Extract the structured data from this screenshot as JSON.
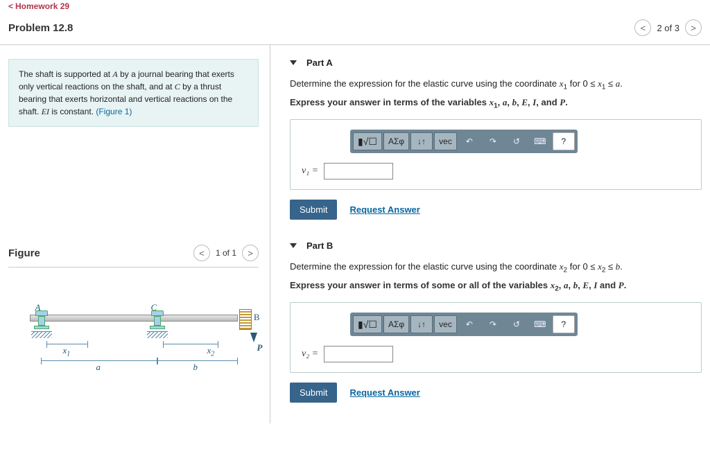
{
  "breadcrumb": "Homework 29",
  "problem_title": "Problem 12.8",
  "page_indicator": "2 of 3",
  "info_html": "The shaft is supported at <span class='mi'>A</span> by a journal bearing that exerts only vertical reactions on the shaft, and at <span class='mi'>C</span> by a thrust bearing that exerts horizontal and vertical reactions on the shaft. <span class='mi'>EI</span> is constant. ",
  "figure_link": "(Figure 1)",
  "figure_section_title": "Figure",
  "figure_page": "1 of 1",
  "figure_labels": {
    "A": "A",
    "C": "C",
    "B": "B",
    "P": "P",
    "x1": "x",
    "x1s": "1",
    "x2": "x",
    "x2s": "2",
    "a": "a",
    "b": "b"
  },
  "parts": [
    {
      "title": "Part A",
      "prompt_html": "Determine the expression for the elastic curve using the coordinate <span class='mi'>x</span><span class='sub'>1</span> for 0 ≤ <span class='mi'>x</span><span class='sub'>1</span> ≤ <span class='mi'>a</span>.",
      "bold_html": "Express your answer in terms of the variables <span class='mi'>x</span><span class='sub'>1</span>, <span class='mi'>a</span>, <span class='mi'>b</span>, <span class='mi'>E</span>, <span class='mi'>I</span>, and <span class='mi'>P</span>.",
      "lhs": "v₁ =",
      "submit": "Submit",
      "request": "Request Answer"
    },
    {
      "title": "Part B",
      "prompt_html": "Determine the expression for the elastic curve using the coordinate <span class='mi'>x</span><span class='sub'>2</span> for 0 ≤ <span class='mi'>x</span><span class='sub'>2</span> ≤ <span class='mi'>b</span>.",
      "bold_html": "Express your answer in terms of some or all of the variables <span class='mi'>x</span><span class='sub'>2</span>, <span class='mi'>a</span>, <span class='mi'>b</span>, <span class='mi'>E</span>, <span class='mi'>I</span> and <span class='mi'>P</span>.",
      "lhs": "v₂ =",
      "submit": "Submit",
      "request": "Request Answer"
    }
  ],
  "toolbar": {
    "templates_icon": "▮√☐",
    "greek": "ΑΣφ",
    "subscript": "↓↑",
    "vec": "vec",
    "undo": "↶",
    "redo": "↷",
    "reset": "↺",
    "keyboard": "⌨",
    "help": "?"
  },
  "colors": {
    "accent": "#b1344a",
    "link": "#0866a0",
    "submit_bg": "#36648b",
    "toolbar_bg": "#6f8695",
    "info_bg": "#e8f3f3"
  }
}
